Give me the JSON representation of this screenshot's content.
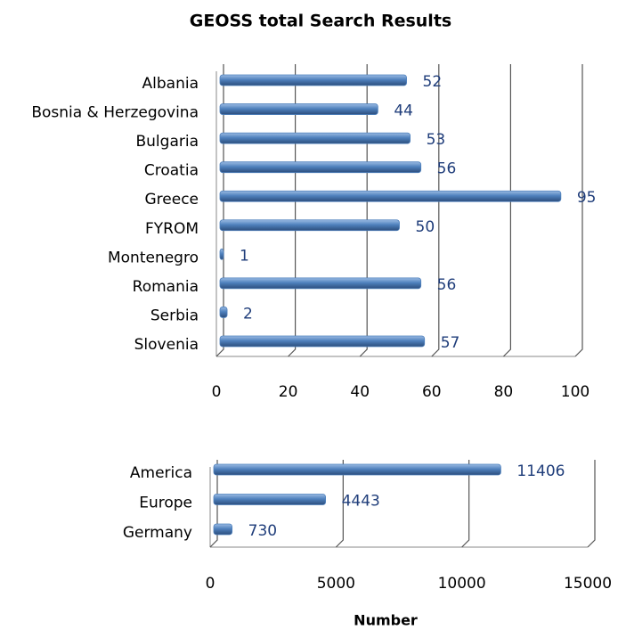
{
  "chart_data": [
    {
      "type": "bar",
      "orientation": "horizontal",
      "title": "GEOSS total Search Results",
      "categories": [
        "Albania",
        "Bosnia & Herzegovina",
        "Bulgaria",
        "Croatia",
        "Greece",
        "FYROM",
        "Montenegro",
        "Romania",
        "Serbia",
        "Slovenia"
      ],
      "values": [
        52,
        44,
        53,
        56,
        95,
        50,
        1,
        56,
        2,
        57
      ],
      "color": "#4f81bd",
      "xlim": [
        0,
        100
      ],
      "xticks": [
        0,
        20,
        40,
        60,
        80,
        100
      ],
      "grid": true
    },
    {
      "type": "bar",
      "orientation": "horizontal",
      "x_label": "Number",
      "categories": [
        "America",
        "Europe",
        "Germany"
      ],
      "values": [
        11406,
        4443,
        730
      ],
      "color": "#4f81bd",
      "xlim": [
        0,
        15000
      ],
      "xticks": [
        0,
        5000,
        10000,
        15000
      ],
      "grid": true
    }
  ]
}
